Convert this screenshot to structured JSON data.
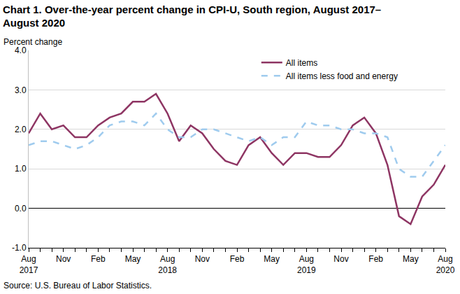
{
  "chart_data": {
    "type": "line",
    "title": "Chart 1. Over-the-year percent change in CPI-U, South region, August 2017–\nAugust 2020",
    "ylabel": "Percent change",
    "source": "Source: U.S. Bureau of Labor Statistics.",
    "categories": [
      "Aug\n2017",
      null,
      null,
      "Nov",
      null,
      null,
      "Feb",
      null,
      null,
      "May",
      null,
      null,
      "Aug\n2018",
      null,
      null,
      "Nov",
      null,
      null,
      "Feb",
      null,
      null,
      "May",
      null,
      null,
      "Aug\n2019",
      null,
      null,
      "Nov",
      null,
      null,
      "Feb",
      null,
      null,
      "May",
      null,
      null,
      "Aug\n2020"
    ],
    "series": [
      {
        "name": "All items",
        "color": "#8e3563",
        "line_style": "solid",
        "values": [
          1.9,
          2.4,
          2.0,
          2.1,
          1.8,
          1.8,
          2.1,
          2.3,
          2.4,
          2.7,
          2.7,
          2.9,
          2.4,
          1.7,
          2.1,
          1.9,
          1.5,
          1.2,
          1.1,
          1.6,
          1.8,
          1.4,
          1.1,
          1.4,
          1.4,
          1.3,
          1.3,
          1.6,
          2.1,
          2.3,
          1.9,
          1.1,
          -0.2,
          -0.4,
          0.3,
          0.6,
          1.1
        ]
      },
      {
        "name": "All items less food and energy",
        "color": "#9fcbee",
        "line_style": "dash",
        "values": [
          1.6,
          1.7,
          1.7,
          1.6,
          1.5,
          1.6,
          1.8,
          2.1,
          2.2,
          2.2,
          2.1,
          2.4,
          2.0,
          1.8,
          1.8,
          2.0,
          2.0,
          1.9,
          1.8,
          1.7,
          1.8,
          1.6,
          1.8,
          1.8,
          2.2,
          2.1,
          2.1,
          2.0,
          2.0,
          1.9,
          1.9,
          1.8,
          1.0,
          0.8,
          0.8,
          1.2,
          1.6
        ]
      }
    ],
    "ylim": [
      -1,
      4
    ],
    "yticks": [
      {
        "value": -1,
        "label": "-1.0"
      },
      {
        "value": 0,
        "label": "0.0"
      },
      {
        "value": 1,
        "label": "1.0"
      },
      {
        "value": 2,
        "label": "2.0"
      },
      {
        "value": 3,
        "label": "3.0"
      },
      {
        "value": 4,
        "label": "4.0"
      }
    ],
    "grid": true,
    "legend": "top right"
  }
}
